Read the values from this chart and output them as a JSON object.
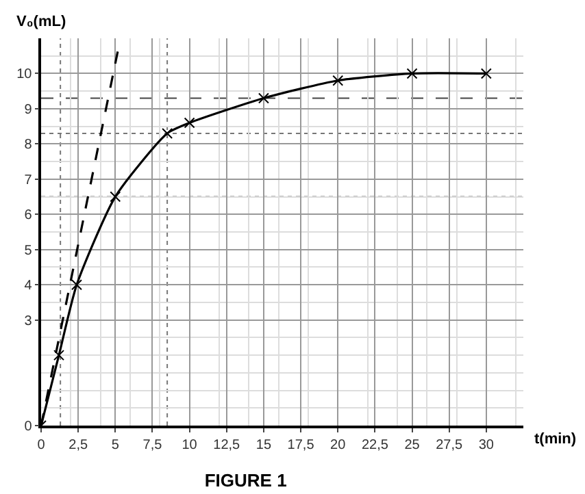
{
  "chart_data": {
    "type": "line",
    "title": "FIGURE 1",
    "xlabel": "t(min)",
    "ylabel": "V₀(mL)",
    "series": [
      {
        "color": "#000000",
        "marker": "cross",
        "line_style": "solid",
        "x": [
          0,
          1.2,
          2.4,
          5,
          8.5,
          10,
          15,
          20,
          25,
          30
        ],
        "values": [
          0,
          2,
          4,
          6.5,
          8.3,
          8.6,
          9.3,
          9.8,
          10,
          10
        ]
      },
      {
        "color": "#000000",
        "marker": "none",
        "line_style": "dashed",
        "x": [
          0,
          5.2
        ],
        "values": [
          0,
          10.7
        ]
      }
    ],
    "xlim": [
      0,
      32.5
    ],
    "ylim": [
      0,
      11
    ],
    "xticks": [
      0,
      {
        "value": 2.5,
        "label": "2,5"
      },
      5,
      {
        "value": 7.5,
        "label": "7,5"
      },
      10,
      {
        "value": 12.5,
        "label": "12,5"
      },
      15,
      {
        "value": 17.5,
        "label": "17,5"
      },
      20,
      {
        "value": 22.5,
        "label": "22,5"
      },
      25,
      {
        "value": 27.5,
        "label": "27,5"
      },
      30
    ],
    "yticks": [
      0,
      3,
      4,
      5,
      6,
      7,
      8,
      9,
      10
    ],
    "ref_lines": [
      {
        "axis": "y",
        "value": 9.3,
        "line_style": "dashed",
        "color": "#444444"
      },
      {
        "axis": "y",
        "value": 6.5,
        "line_style": "dotted",
        "color": "#777777"
      },
      {
        "axis": "y",
        "value": 8.3,
        "line_style": "dotted",
        "color": "#777777"
      },
      {
        "axis": "x",
        "value": 8.5,
        "line_style": "dotted",
        "color": "#777777"
      },
      {
        "axis": "x",
        "value": 1.3,
        "line_style": "dotted",
        "color": "#777777"
      }
    ],
    "grid": true
  }
}
